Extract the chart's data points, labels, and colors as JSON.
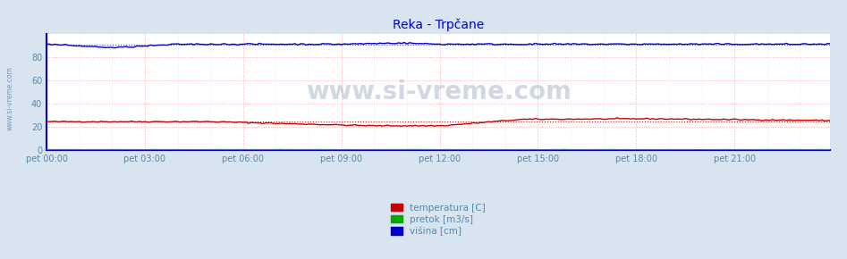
{
  "title": "Reka - Trpčane",
  "title_color": "#0000cc",
  "title_fontsize": 10,
  "bg_color": "#d8e4f0",
  "plot_bg_color": "#ffffff",
  "xlim": [
    0,
    287
  ],
  "ylim": [
    0,
    100
  ],
  "yticks": [
    0,
    20,
    40,
    60,
    80
  ],
  "xtick_labels": [
    "pet 00:00",
    "pet 03:00",
    "pet 06:00",
    "pet 09:00",
    "pet 12:00",
    "pet 15:00",
    "pet 18:00",
    "pet 21:00"
  ],
  "xtick_positions": [
    0,
    36,
    72,
    108,
    144,
    180,
    216,
    252
  ],
  "grid_color_h": "#ffaaaa",
  "grid_color_v": "#ddcccc",
  "temperatura_color": "#cc0000",
  "pretok_color": "#00aa00",
  "visina_color": "#0000cc",
  "axis_color": "#0000cc",
  "watermark": "www.si-vreme.com",
  "watermark_color": "#aabbcc",
  "sidebar_text": "www.si-vreme.com",
  "sidebar_color": "#7799bb",
  "tick_color": "#5588aa",
  "n_points": 288
}
